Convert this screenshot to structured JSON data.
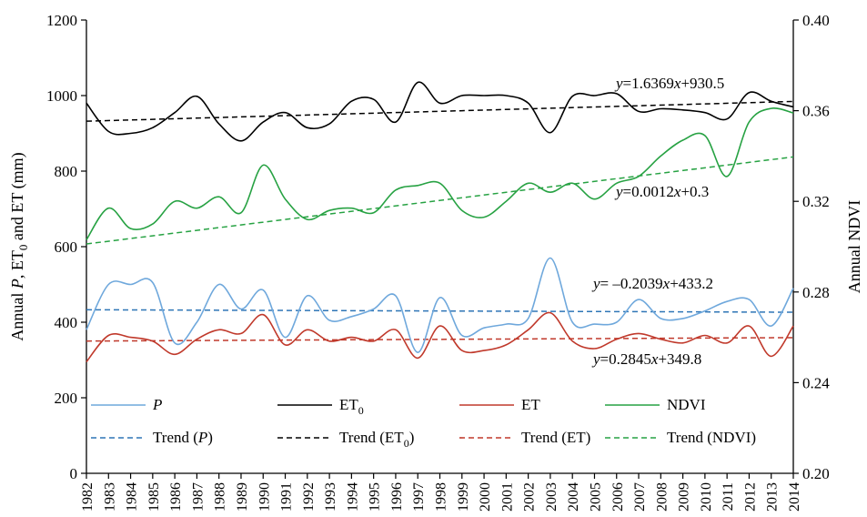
{
  "chart_data": {
    "type": "line",
    "xlabel": "",
    "ylabel": "Annual P, ET0 and ET (mm)",
    "ylabel_parts": {
      "prefix": "Annual ",
      "p": "P",
      "sep": ",  ET",
      "sub": "0",
      "rest": " and ET (mm)"
    },
    "y2label": "Annual NDVI",
    "ylim": [
      0,
      1200
    ],
    "yticks": [
      0,
      200,
      400,
      600,
      800,
      1000,
      1200
    ],
    "y2lim": [
      0.2,
      0.4
    ],
    "y2ticks": [
      "0.20",
      "0.24",
      "0.28",
      "0.32",
      "0.36",
      "0.40"
    ],
    "x": [
      1982,
      1983,
      1984,
      1985,
      1986,
      1987,
      1988,
      1989,
      1990,
      1991,
      1992,
      1993,
      1994,
      1995,
      1996,
      1997,
      1998,
      1999,
      2000,
      2001,
      2002,
      2003,
      2004,
      2005,
      2006,
      2007,
      2008,
      2009,
      2010,
      2011,
      2012,
      2013,
      2014
    ],
    "series": [
      {
        "name": "P",
        "axis": "left",
        "color": "#6fa8dc",
        "values": [
          380,
          500,
          500,
          505,
          345,
          400,
          500,
          435,
          485,
          360,
          470,
          405,
          415,
          435,
          470,
          320,
          465,
          365,
          385,
          395,
          410,
          570,
          400,
          395,
          400,
          460,
          410,
          410,
          430,
          455,
          460,
          390,
          490
        ]
      },
      {
        "name": "ET0",
        "axis": "left",
        "color": "#000000",
        "values": [
          980,
          905,
          900,
          915,
          955,
          998,
          925,
          880,
          930,
          955,
          915,
          925,
          985,
          990,
          930,
          1035,
          980,
          1000,
          1000,
          1000,
          980,
          902,
          998,
          1000,
          1005,
          958,
          965,
          962,
          955,
          938,
          1008,
          985,
          970
        ]
      },
      {
        "name": "ET",
        "axis": "left",
        "color": "#c0392b",
        "values": [
          295,
          365,
          360,
          350,
          315,
          355,
          380,
          370,
          420,
          340,
          380,
          350,
          360,
          350,
          380,
          305,
          390,
          325,
          325,
          340,
          380,
          425,
          350,
          330,
          355,
          370,
          355,
          345,
          365,
          345,
          390,
          310,
          390
        ]
      },
      {
        "name": "NDVI",
        "axis": "right",
        "color": "#27a243",
        "values": [
          0.303,
          0.317,
          0.308,
          0.31,
          0.32,
          0.317,
          0.322,
          0.315,
          0.336,
          0.321,
          0.312,
          0.316,
          0.317,
          0.315,
          0.325,
          0.327,
          0.328,
          0.316,
          0.313,
          0.32,
          0.328,
          0.324,
          0.328,
          0.321,
          0.328,
          0.331,
          0.34,
          0.347,
          0.349,
          0.331,
          0.355,
          0.361,
          0.359
        ]
      }
    ],
    "trends": [
      {
        "series": "P",
        "axis": "left",
        "color": "#2e75b6",
        "slope": -0.2039,
        "intercept": 433.2,
        "equation": {
          "y": "y",
          "eq": "= –0.2039",
          "x": "x",
          "rest": "+433.2"
        }
      },
      {
        "series": "ET0",
        "axis": "left",
        "color": "#000000",
        "slope": 1.6369,
        "intercept": 930.5,
        "equation": {
          "y": "y",
          "eq": "=1.6369",
          "x": "x",
          "rest": "+930.5"
        }
      },
      {
        "series": "ET",
        "axis": "left",
        "color": "#c0392b",
        "slope": 0.2845,
        "intercept": 349.8,
        "equation": {
          "y": "y",
          "eq": "=0.2845",
          "x": "x",
          "rest": "+349.8"
        }
      },
      {
        "series": "NDVI",
        "axis": "right",
        "color": "#27a243",
        "slope": 0.0012,
        "intercept": 0.3,
        "equation": {
          "y": "y",
          "eq": "=0.0012",
          "x": "x",
          "rest": "+0.3"
        }
      }
    ],
    "legend": {
      "placement": "bottom-inside",
      "items": [
        {
          "label": "P",
          "italic": true,
          "color": "#6fa8dc",
          "dashed": false
        },
        {
          "label": "ET",
          "sub": "0",
          "color": "#000000",
          "dashed": false
        },
        {
          "label": "ET",
          "color": "#c0392b",
          "dashed": false
        },
        {
          "label": "NDVI",
          "color": "#27a243",
          "dashed": false
        },
        {
          "label": "Trend (",
          "italic_part": "P",
          "tail": ")",
          "color": "#2e75b6",
          "dashed": true
        },
        {
          "label": "Trend (ET",
          "sub": "0",
          "tail": ")",
          "color": "#000000",
          "dashed": true
        },
        {
          "label": "Trend (ET)",
          "color": "#c0392b",
          "dashed": true
        },
        {
          "label": "Trend (NDVI)",
          "color": "#27a243",
          "dashed": true
        }
      ]
    },
    "grid": false
  }
}
